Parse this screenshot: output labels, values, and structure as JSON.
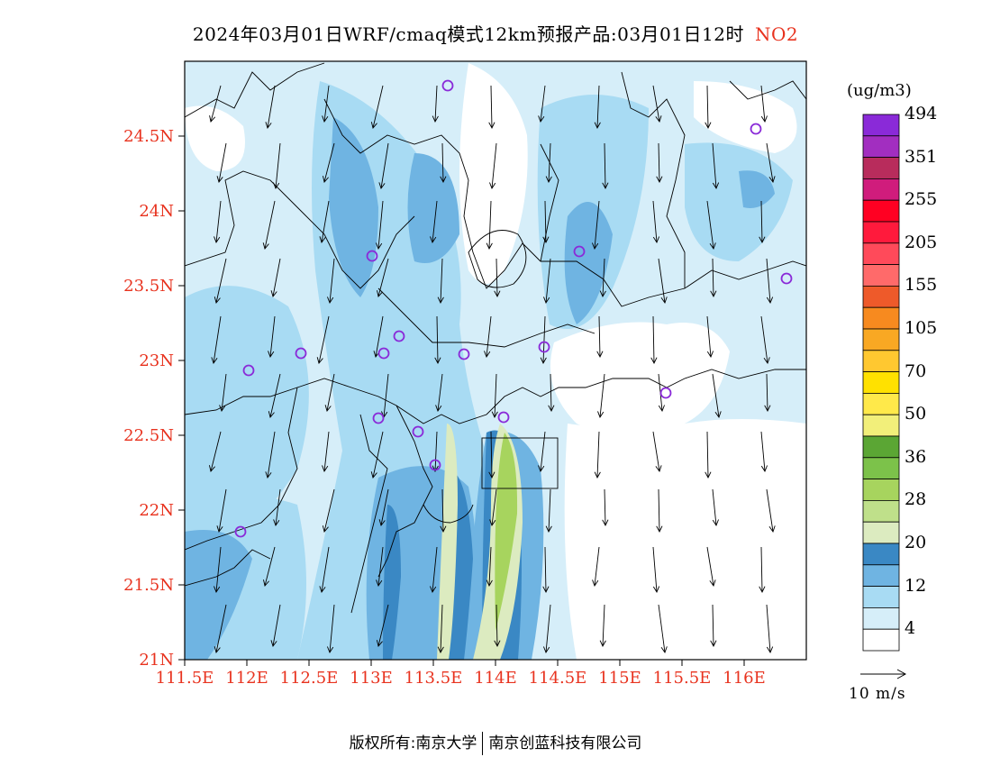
{
  "title": {
    "main": "2024年03月01日WRF/cmaq模式12km预报产品:03月01日12时",
    "pollutant": "NO2",
    "pollutant_color": "#e8321e"
  },
  "axes": {
    "y_labels": [
      "24.5N",
      "24N",
      "23.5N",
      "23N",
      "22.5N",
      "22N",
      "21.5N",
      "21N"
    ],
    "y_values": [
      24.5,
      24.0,
      23.5,
      23.0,
      22.5,
      22.0,
      21.5,
      21.0
    ],
    "x_labels": [
      "111.5E",
      "112E",
      "112.5E",
      "113E",
      "113.5E",
      "114E",
      "114.5E",
      "115E",
      "115.5E",
      "116E"
    ],
    "x_values": [
      111.5,
      112.0,
      112.5,
      113.0,
      113.5,
      114.0,
      114.5,
      115.0,
      115.5,
      116.0
    ],
    "lon_range": [
      111.5,
      116.5
    ],
    "lat_range": [
      21.0,
      25.0
    ],
    "label_color": "#e8321e"
  },
  "colorbar": {
    "unit": "(ug/m3)",
    "colors": [
      "#ffffff",
      "#d6eef9",
      "#a8dbf3",
      "#6fb4e2",
      "#3a88c4",
      "#dcebc0",
      "#bfe08a",
      "#a7d45e",
      "#7cc24a",
      "#5ba634",
      "#f2ef7a",
      "#ffe94a",
      "#ffe100",
      "#ffc830",
      "#f9a823",
      "#f78a1f",
      "#ee5a2a",
      "#ff6a6a",
      "#ff4a5a",
      "#ff1a3c",
      "#ff0022",
      "#d01c7c",
      "#b82c5c",
      "#a22ec0",
      "#8a2ad8"
    ],
    "labels": [
      "4",
      "12",
      "20",
      "28",
      "36",
      "50",
      "70",
      "105",
      "155",
      "205",
      "255",
      "351",
      "494"
    ]
  },
  "wind_reference": {
    "label": "10 m/s"
  },
  "footer": {
    "left": "版权所有:南京大学",
    "right": "南京创蓝科技有限公司"
  }
}
